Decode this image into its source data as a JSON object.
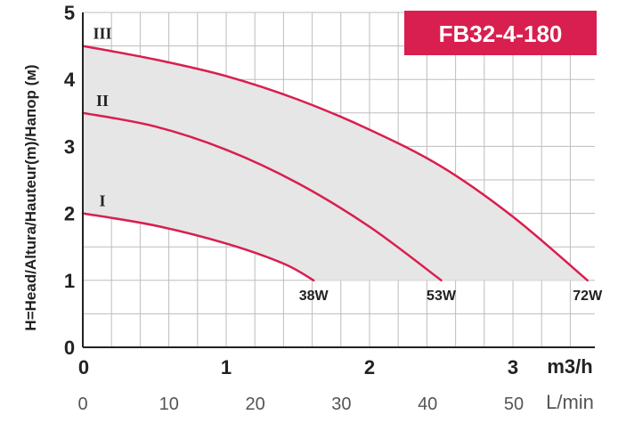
{
  "chart_data": {
    "type": "line",
    "title": "FB32-4-180",
    "ylabel": "H=Head/Altura/Hauteur(m)/Напор (м)",
    "x_unit": "m3/h",
    "x2_unit": "L/min",
    "xlim": [
      0,
      3.5
    ],
    "ylim": [
      0,
      5
    ],
    "x_ticks": [
      "0",
      "1",
      "2",
      "3"
    ],
    "x2_ticks": [
      "0",
      "10",
      "20",
      "30",
      "40",
      "50"
    ],
    "y_ticks": [
      "0",
      "1",
      "2",
      "3",
      "4",
      "5"
    ],
    "grid": true,
    "colors": {
      "curve": "#d81f4f",
      "fill": "#e6e6e6",
      "grid": "#bdbdbd",
      "title_bg": "#d81f4f"
    },
    "series": [
      {
        "name": "I",
        "power": "38W",
        "x": [
          0,
          0.5,
          1.0,
          1.4,
          1.61
        ],
        "y": [
          2.0,
          1.82,
          1.55,
          1.25,
          1.0
        ]
      },
      {
        "name": "II",
        "power": "53W",
        "x": [
          0,
          0.5,
          1.0,
          1.5,
          2.0,
          2.5
        ],
        "y": [
          3.5,
          3.3,
          2.95,
          2.45,
          1.8,
          1.0
        ]
      },
      {
        "name": "III",
        "power": "72W",
        "x": [
          0,
          0.5,
          1.0,
          1.5,
          2.0,
          2.5,
          3.0,
          3.52
        ],
        "y": [
          4.5,
          4.3,
          4.05,
          3.7,
          3.25,
          2.7,
          1.95,
          1.0
        ]
      }
    ]
  }
}
